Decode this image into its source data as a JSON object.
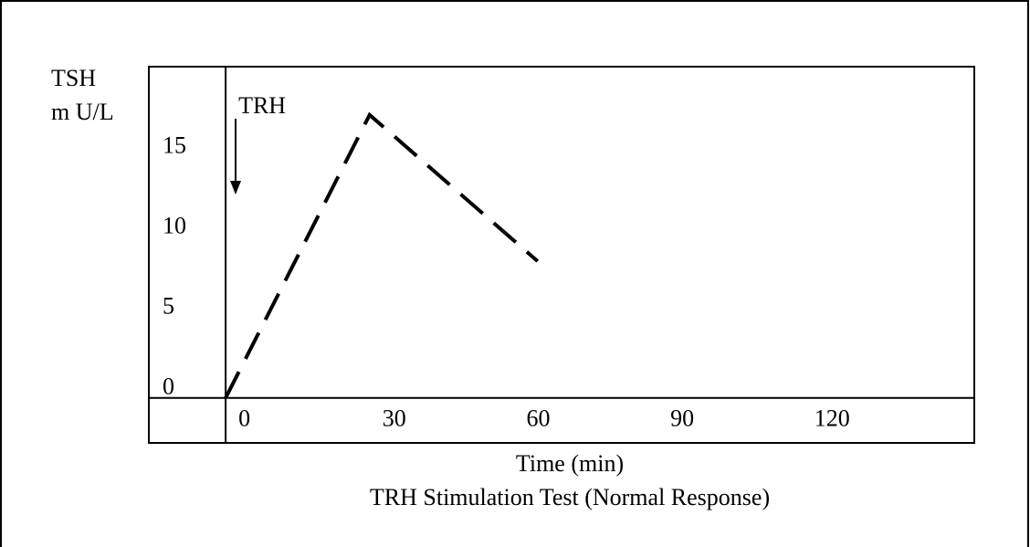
{
  "chart_data": {
    "type": "line",
    "title": "TRH Stimulation Test (Normal Response)",
    "xlabel": "Time (min)",
    "ylabel": [
      "TSH",
      "m U/L"
    ],
    "annotation": "TRH",
    "x": [
      0,
      30,
      65
    ],
    "values": [
      0,
      17.6,
      8.5
    ],
    "color": "#000000",
    "dashed": true,
    "xlim": [
      -16,
      156
    ],
    "ylim": [
      -2.8,
      20.6
    ],
    "xticks": [
      0,
      30,
      60,
      90,
      120
    ],
    "yticks": [
      0,
      5,
      10,
      15
    ],
    "grid": false
  }
}
